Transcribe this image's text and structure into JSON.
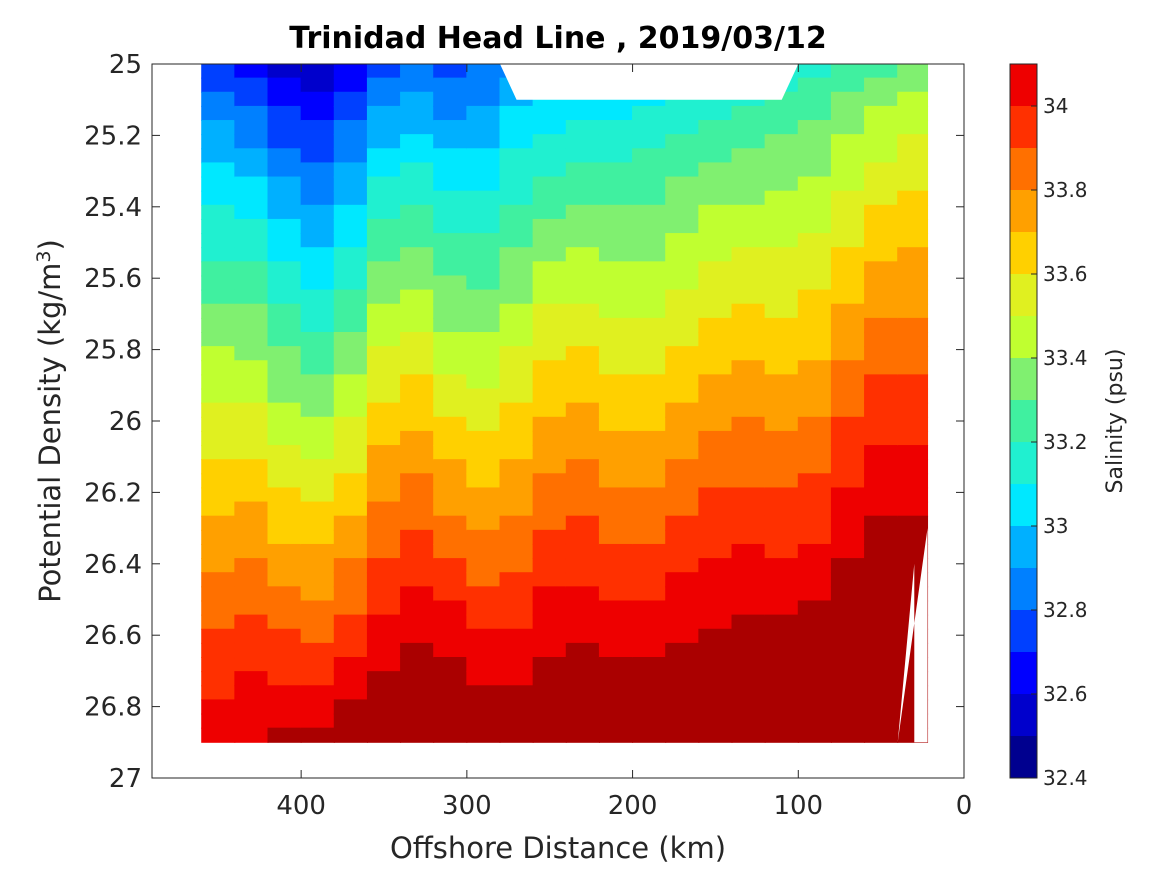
{
  "chart_data": {
    "type": "contour",
    "title": "Trinidad Head Line , 2019/03/12",
    "xlabel": "Offshore Distance (km)",
    "ylabel_prefix": "Potential Density (kg/m",
    "ylabel_sup": "3",
    "ylabel_suffix": ")",
    "colorbar_label": "Salinity (psu)",
    "x_axis_reversed": true,
    "xlim": [
      0,
      490
    ],
    "ylim": [
      25,
      27
    ],
    "y_axis_reversed": true,
    "x_ticks": [
      400,
      300,
      200,
      100,
      0
    ],
    "x_tick_labels": [
      "400",
      "300",
      "200",
      "100",
      "0"
    ],
    "y_ticks": [
      25,
      25.2,
      25.4,
      25.6,
      25.8,
      26,
      26.2,
      26.4,
      26.6,
      26.8,
      27
    ],
    "y_tick_labels": [
      "25",
      "25.2",
      "25.4",
      "25.6",
      "25.8",
      "26",
      "26.2",
      "26.4",
      "26.6",
      "26.8",
      "27"
    ],
    "colorbar_range": [
      32.4,
      34.1
    ],
    "colorbar_ticks": [
      32.4,
      32.6,
      32.8,
      33,
      33.2,
      33.4,
      33.6,
      33.8,
      34
    ],
    "colorbar_tick_labels": [
      "32.4",
      "32.6",
      "32.8",
      "33",
      "33.2",
      "33.4",
      "33.6",
      "33.8",
      "34"
    ],
    "levels": [
      32.4,
      32.5,
      32.6,
      32.7,
      32.8,
      32.9,
      33.0,
      33.1,
      33.2,
      33.3,
      33.4,
      33.5,
      33.6,
      33.7,
      33.8,
      33.9,
      34.0,
      34.1
    ],
    "level_colors": [
      "#00008f",
      "#0000cc",
      "#0000ff",
      "#0040ff",
      "#0080ff",
      "#00b0ff",
      "#00e8ff",
      "#20f0d0",
      "#40f0a0",
      "#80f070",
      "#c0ff30",
      "#e0f020",
      "#ffd000",
      "#ffa000",
      "#ff7000",
      "#ff3000",
      "#ee0000",
      "#aa0000"
    ],
    "data_extent": {
      "x_min": 22,
      "x_max": 460,
      "y_min": 25,
      "y_max": 26.9
    },
    "x_stations": [
      460,
      440,
      420,
      400,
      380,
      360,
      340,
      320,
      300,
      280,
      260,
      240,
      220,
      200,
      180,
      160,
      140,
      120,
      100,
      80,
      60,
      40,
      22
    ],
    "salinity_at_top": [
      32.72,
      32.7,
      32.58,
      32.5,
      32.52,
      32.68,
      32.82,
      32.75,
      32.7,
      32.85,
      32.88,
      32.92,
      32.95,
      32.98,
      33.0,
      33.03,
      33.06,
      33.1,
      33.15,
      33.2,
      33.25,
      33.3,
      33.35
    ],
    "salinity_at_bottom": [
      34.05,
      34.1,
      34.12,
      34.12,
      34.15,
      34.2,
      34.25,
      34.3,
      34.25,
      34.2,
      34.2,
      34.25,
      34.25,
      34.25,
      34.27,
      34.25,
      34.25,
      34.3,
      34.32,
      34.35,
      34.38,
      34.4,
      34.4
    ],
    "blank_regions": [
      {
        "label": "top-gap",
        "x": [
          280,
          270,
          110,
          100
        ],
        "y": [
          25,
          25.1,
          25.1,
          25
        ]
      },
      {
        "label": "lower-right-gap",
        "x": [
          22,
          22,
          30,
          30,
          40
        ],
        "y": [
          26.3,
          26.9,
          26.9,
          26.4,
          26.9
        ]
      }
    ]
  }
}
